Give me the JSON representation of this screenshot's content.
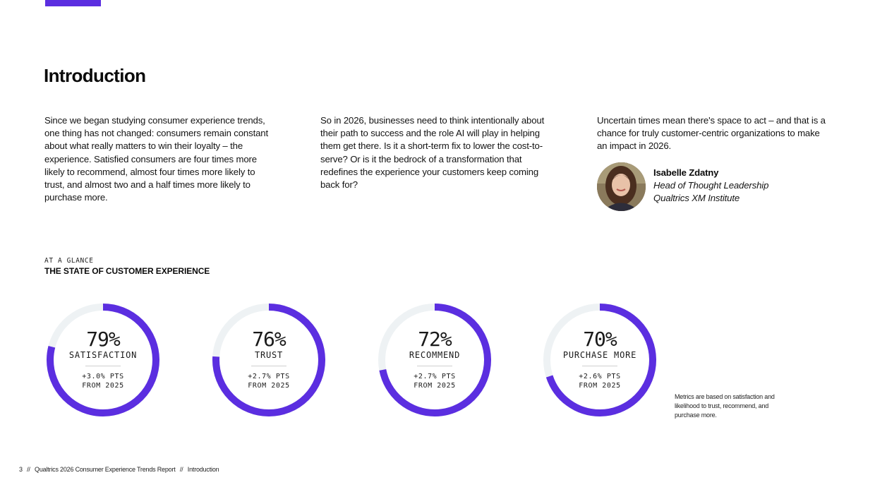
{
  "header": {
    "accent_color": "#5b2ee0"
  },
  "page_title": "Introduction",
  "columns": [
    "Since we began studying consumer experience trends, one thing has not changed: consumers remain constant about what really matters to win their loyalty – the experience. Satisfied consumers are four times more likely to recommend, almost four times more likely to trust, and almost two and a half times more likely to purchase more.",
    "So in 2026, businesses need to think intentionally about their path to success and the role AI will play in helping them get there. Is it a short-term fix to lower the cost-to-serve? Or is it the bedrock of a transformation that redefines the experience your customers keep coming back for?",
    "Uncertain times mean there's space to act – and that is a chance for truly customer-centric organizations to make an impact in 2026."
  ],
  "author": {
    "name": "Isabelle Zdatny",
    "role": "Head of Thought Leadership",
    "org": "Qualtrics XM Institute"
  },
  "glance": {
    "kicker": "AT A GLANCE",
    "title": "THE STATE OF CUSTOMER EXPERIENCE"
  },
  "metrics": [
    {
      "percent": "79%",
      "value": 79,
      "label": "SATISFACTION",
      "delta_line1": "+3.0% PTS",
      "delta_line2": "FROM 2025"
    },
    {
      "percent": "76%",
      "value": 76,
      "label": "TRUST",
      "delta_line1": "+2.7% PTS",
      "delta_line2": "FROM 2025"
    },
    {
      "percent": "72%",
      "value": 72,
      "label": "RECOMMEND",
      "delta_line1": "+2.7% PTS",
      "delta_line2": "FROM 2025"
    },
    {
      "percent": "70%",
      "value": 70,
      "label": "PURCHASE MORE",
      "delta_line1": "+2.6% PTS",
      "delta_line2": "FROM 2025"
    }
  ],
  "ring_colors": {
    "fill": "#5b2ee0",
    "track": "#eef2f4"
  },
  "note": "Metrics are based on satisfaction and likelihood to trust, recommend, and purchase more.",
  "footer": {
    "page_number": "3",
    "separator": "//",
    "report": "Qualtrics 2026 Consumer Experience Trends Report",
    "section": "Introduction"
  }
}
